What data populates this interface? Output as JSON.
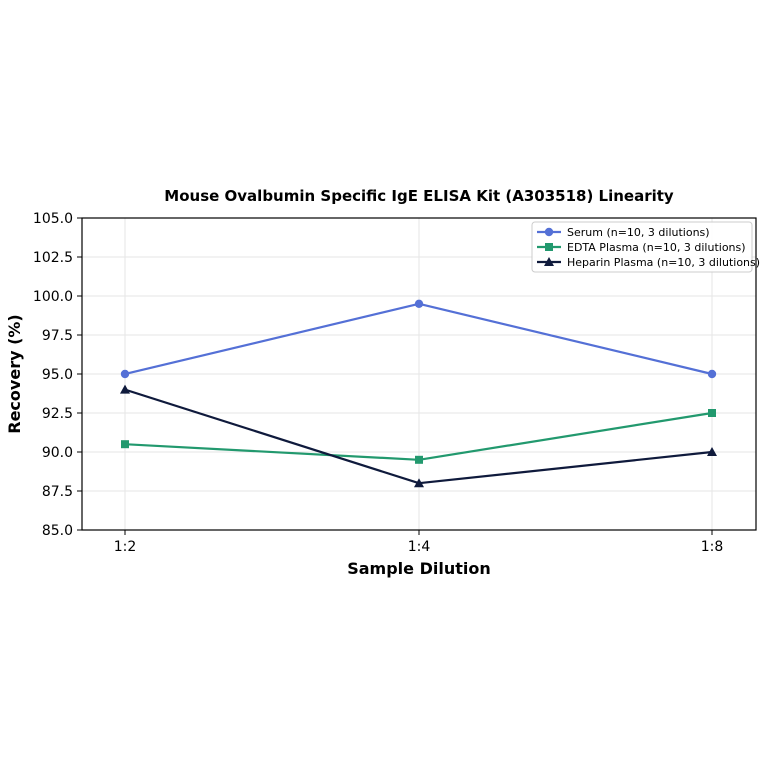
{
  "chart_data": {
    "type": "line",
    "title": "Mouse Ovalbumin Specific IgE ELISA Kit (A303518) Linearity",
    "xlabel": "Sample Dilution",
    "ylabel": "Recovery (%)",
    "categories": [
      "1:2",
      "1:4",
      "1:8"
    ],
    "ylim": [
      85.0,
      105.0
    ],
    "yticks": [
      "85.0",
      "87.5",
      "90.0",
      "92.5",
      "95.0",
      "97.5",
      "100.0",
      "102.5",
      "105.0"
    ],
    "grid": true,
    "legend_position": "top-right",
    "series": [
      {
        "name": "Serum (n=10, 3 dilutions)",
        "values": [
          95.0,
          99.5,
          95.0
        ],
        "color": "#5470d6",
        "marker": "circle"
      },
      {
        "name": "EDTA Plasma (n=10, 3 dilutions)",
        "values": [
          90.5,
          89.5,
          92.5
        ],
        "color": "#22996e",
        "marker": "square"
      },
      {
        "name": "Heparin Plasma (n=10, 3 dilutions)",
        "values": [
          94.0,
          88.0,
          90.0
        ],
        "color": "#0f1a3c",
        "marker": "triangle"
      }
    ]
  }
}
